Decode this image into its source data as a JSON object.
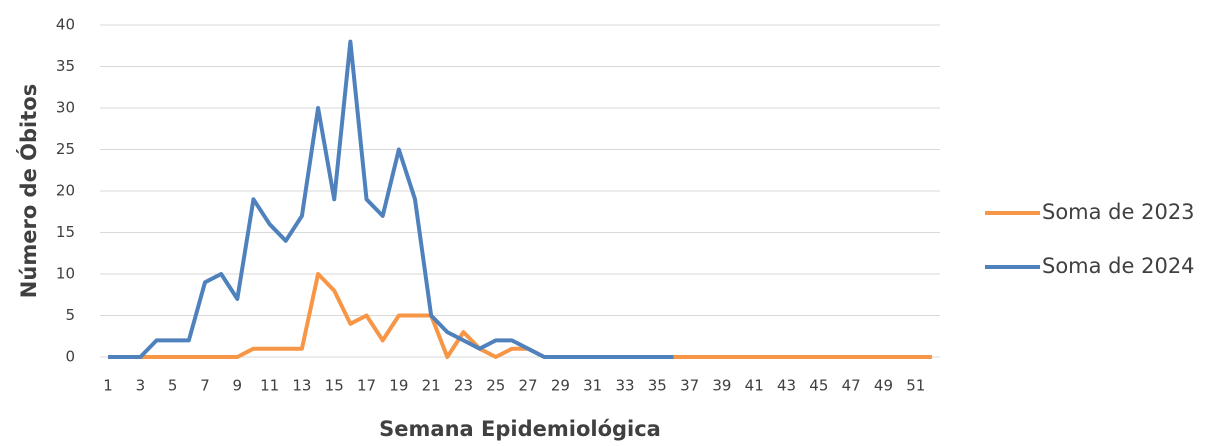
{
  "chart_data": {
    "type": "line",
    "xlabel": "Semana Epidemiológica",
    "ylabel": "Número de Óbitos",
    "categories": [
      "1",
      null,
      "3",
      null,
      "5",
      null,
      "7",
      null,
      "9",
      null,
      "11",
      null,
      "13",
      null,
      "15",
      null,
      "17",
      null,
      "19",
      null,
      "21",
      null,
      "23",
      null,
      "25",
      null,
      "27",
      null,
      "29",
      null,
      "31",
      null,
      "33",
      null,
      "35",
      null,
      "37",
      null,
      "39",
      null,
      "41",
      null,
      "43",
      null,
      "45",
      null,
      "47",
      null,
      "49",
      null,
      "51",
      null
    ],
    "series": [
      {
        "name": "Soma de 2023",
        "color": "#f79646",
        "values": [
          0,
          0,
          0,
          0,
          0,
          0,
          0,
          0,
          0,
          1,
          1,
          1,
          1,
          10,
          8,
          4,
          5,
          2,
          5,
          5,
          5,
          0,
          3,
          1,
          0,
          1,
          1,
          0,
          0,
          0,
          0,
          0,
          0,
          0,
          0,
          0,
          0,
          0,
          0,
          0,
          0,
          0,
          0,
          0,
          0,
          0,
          0,
          0,
          0,
          0,
          0,
          0
        ]
      },
      {
        "name": "Soma de 2024",
        "color": "#4f81bd",
        "values": [
          0,
          0,
          0,
          2,
          2,
          2,
          9,
          10,
          7,
          19,
          16,
          14,
          17,
          30,
          19,
          38,
          19,
          17,
          25,
          19,
          5,
          3,
          2,
          1,
          2,
          2,
          1,
          0,
          0,
          0,
          0,
          0,
          0,
          0,
          0,
          0,
          null,
          null,
          null,
          null,
          null,
          null,
          null,
          null,
          null,
          null,
          null,
          null,
          null,
          null,
          null,
          null
        ]
      }
    ],
    "ylim": [
      0,
      40
    ],
    "yticks": [
      0,
      5,
      10,
      15,
      20,
      25,
      30,
      35,
      40
    ],
    "grid": true,
    "legend": "right"
  }
}
